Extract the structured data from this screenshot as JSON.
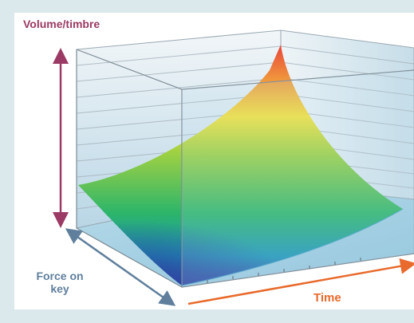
{
  "labels": {
    "volume_timbre": "Volume/timbre",
    "force_on_key": "Force on\nkey",
    "time": "Time"
  },
  "colors": {
    "background": "#dbe9ec",
    "volume_arrow": "#9b3a64",
    "force_arrow": "#5f7f9d",
    "time_arrow": "#e86a2c"
  }
}
